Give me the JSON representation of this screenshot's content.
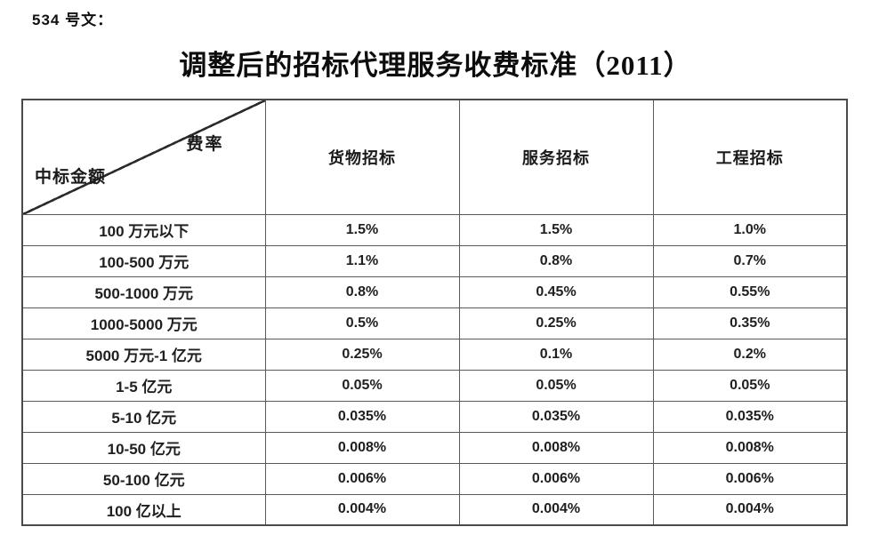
{
  "doc_label": "534 号文：",
  "title": "调整后的招标代理服务收费标准（2011）",
  "table": {
    "corner": {
      "top_right": "费率",
      "bottom_left": "中标金额"
    },
    "columns": [
      "货物招标",
      "服务招标",
      "工程招标"
    ],
    "rows": [
      {
        "label": "100 万元以下",
        "values": [
          "1.5%",
          "1.5%",
          "1.0%"
        ]
      },
      {
        "label": "100-500 万元",
        "values": [
          "1.1%",
          "0.8%",
          "0.7%"
        ]
      },
      {
        "label": "500-1000 万元",
        "values": [
          "0.8%",
          "0.45%",
          "0.55%"
        ]
      },
      {
        "label": "1000-5000 万元",
        "values": [
          "0.5%",
          "0.25%",
          "0.35%"
        ]
      },
      {
        "label": "5000 万元-1 亿元",
        "values": [
          "0.25%",
          "0.1%",
          "0.2%"
        ]
      },
      {
        "label": "1-5 亿元",
        "values": [
          "0.05%",
          "0.05%",
          "0.05%"
        ]
      },
      {
        "label": "5-10 亿元",
        "values": [
          "0.035%",
          "0.035%",
          "0.035%"
        ]
      },
      {
        "label": "10-50 亿元",
        "values": [
          "0.008%",
          "0.008%",
          "0.008%"
        ]
      },
      {
        "label": "50-100 亿元",
        "values": [
          "0.006%",
          "0.006%",
          "0.006%"
        ]
      },
      {
        "label": "100 亿以上",
        "values": [
          "0.004%",
          "0.004%",
          "0.004%"
        ]
      }
    ]
  }
}
